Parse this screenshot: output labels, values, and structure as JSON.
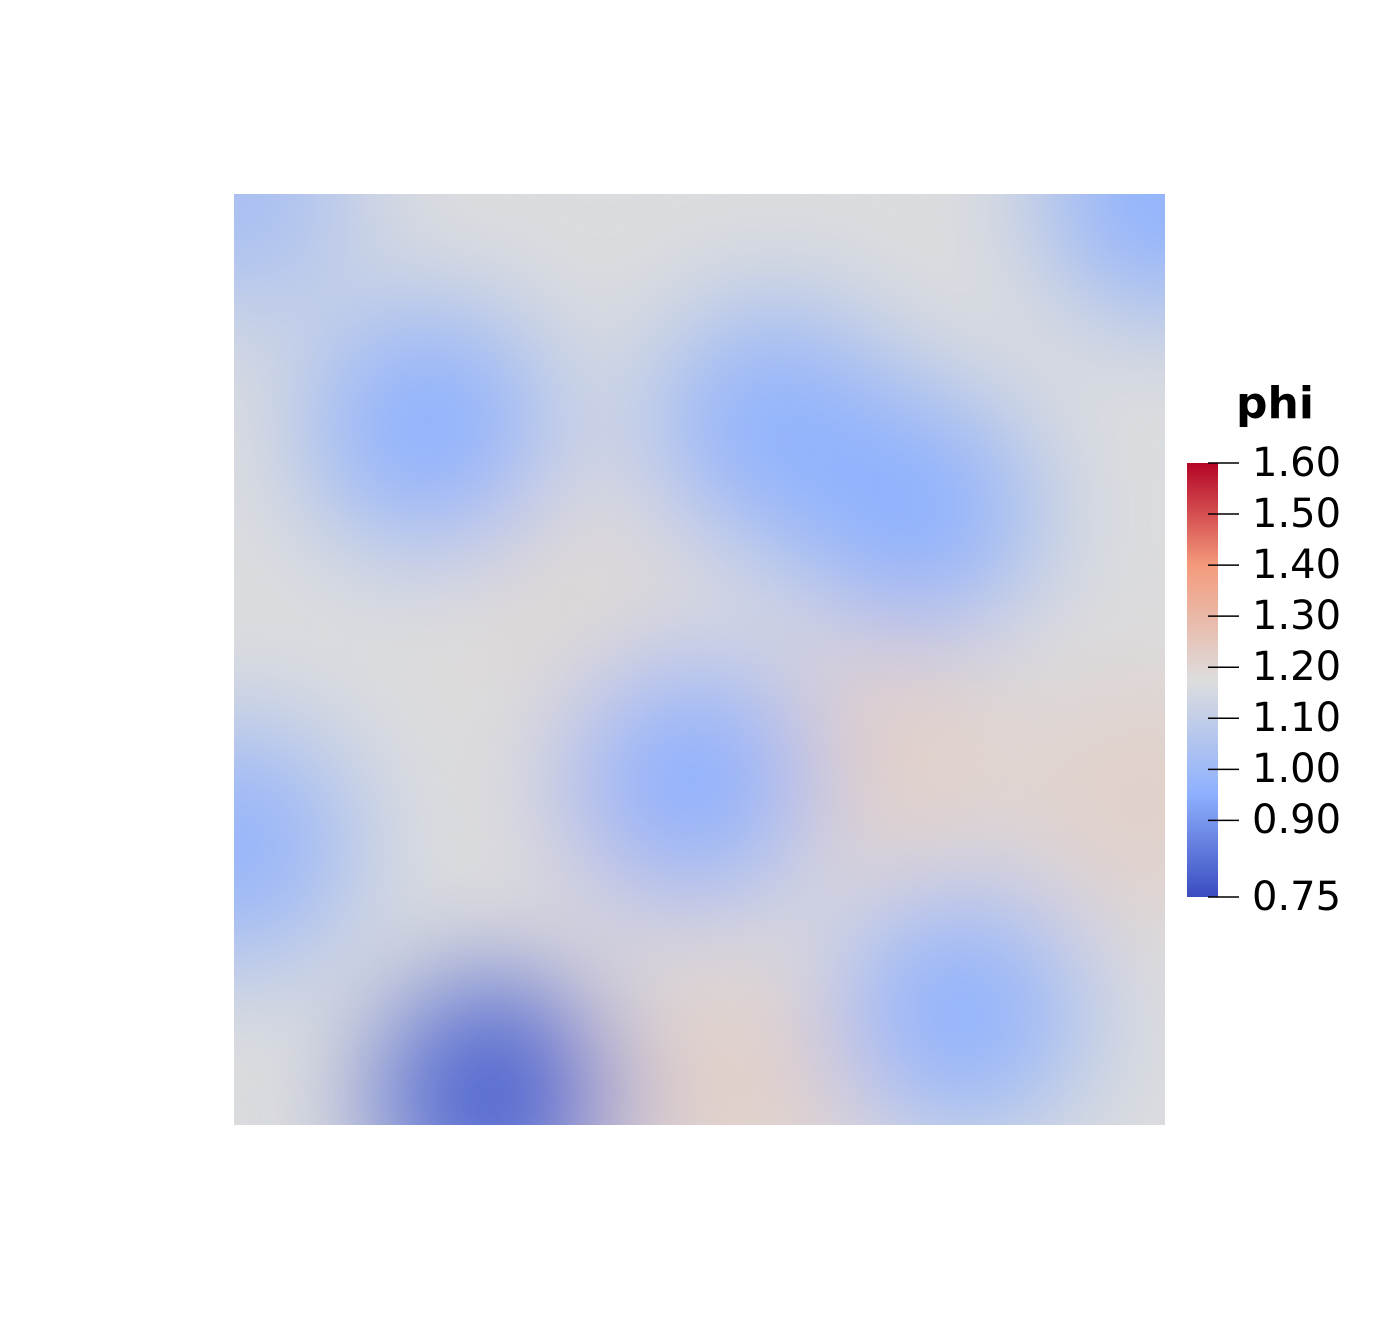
{
  "chart_data": {
    "type": "heatmap",
    "colormap": "coolwarm",
    "grid": false,
    "legend_placement": "right",
    "colorbar": {
      "title": "phi",
      "range": [
        0.75,
        1.6
      ],
      "ticks": [
        {
          "value": 1.6,
          "label": "1.60"
        },
        {
          "value": 1.5,
          "label": "1.50"
        },
        {
          "value": 1.4,
          "label": "1.40"
        },
        {
          "value": 1.3,
          "label": "1.30"
        },
        {
          "value": 1.2,
          "label": "1.20"
        },
        {
          "value": 1.1,
          "label": "1.10"
        },
        {
          "value": 1.0,
          "label": "1.00"
        },
        {
          "value": 0.9,
          "label": "0.90"
        },
        {
          "value": 0.75,
          "label": "0.75"
        }
      ],
      "stops": [
        {
          "value": 0.75,
          "color": "#3b4cc0"
        },
        {
          "value": 0.95,
          "color": "#8db0fe"
        },
        {
          "value": 1.175,
          "color": "#dddddd"
        },
        {
          "value": 1.4,
          "color": "#f49a7b"
        },
        {
          "value": 1.6,
          "color": "#b40426"
        }
      ]
    },
    "field": {
      "x_range": [
        0,
        1
      ],
      "y_range": [
        0,
        1
      ],
      "background_value": 1.17,
      "peaks": [
        {
          "x": 0.47,
          "y": 0.35,
          "value": 1.25
        },
        {
          "x": 0.7,
          "y": 0.4,
          "value": 1.22
        },
        {
          "x": 0.37,
          "y": 0.55,
          "value": 1.19
        },
        {
          "x": 0.54,
          "y": 0.04,
          "value": 1.22
        },
        {
          "x": 0.98,
          "y": 0.35,
          "value": 1.22
        }
      ],
      "troughs": [
        {
          "x": 0.21,
          "y": 0.75,
          "value": 0.95
        },
        {
          "x": 0.58,
          "y": 0.75,
          "value": 0.96
        },
        {
          "x": 0.73,
          "y": 0.66,
          "value": 0.95
        },
        {
          "x": 0.49,
          "y": 0.37,
          "value": 0.95
        },
        {
          "x": 0.28,
          "y": 0.03,
          "value": 0.8
        },
        {
          "x": 0.78,
          "y": 0.12,
          "value": 0.96
        },
        {
          "x": 0.0,
          "y": 0.3,
          "value": 0.97
        },
        {
          "x": 1.0,
          "y": 1.0,
          "value": 0.95
        },
        {
          "x": 0.0,
          "y": 1.0,
          "value": 1.02
        }
      ]
    }
  }
}
